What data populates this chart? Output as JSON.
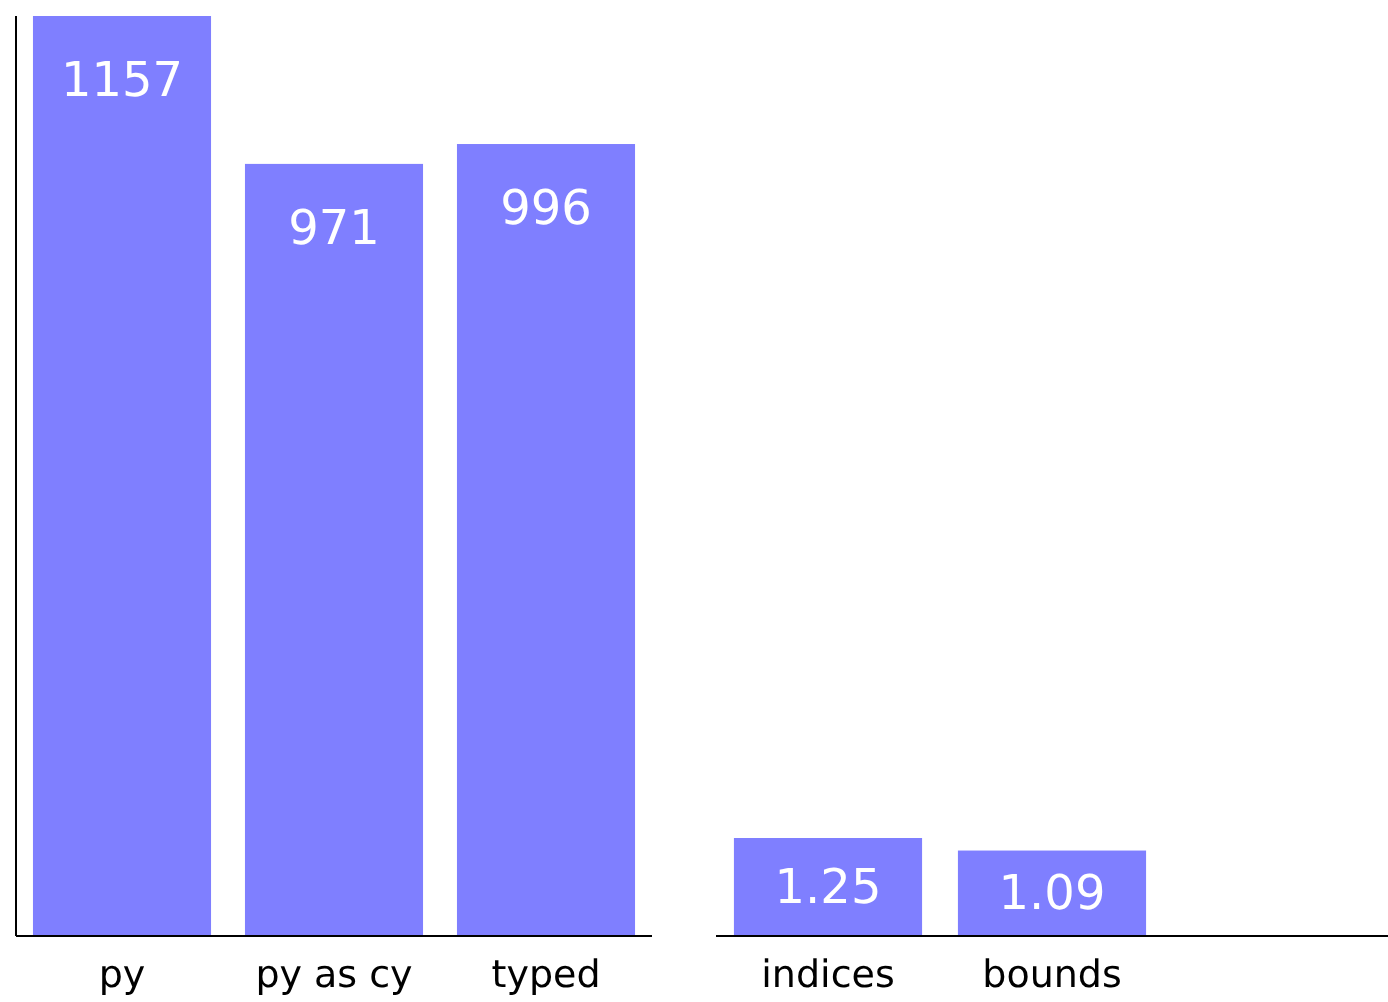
{
  "chart_data": [
    {
      "type": "bar",
      "categories": [
        "py",
        "py as cy",
        "typed"
      ],
      "values": [
        1157,
        971,
        996
      ],
      "color": "#7f7fff",
      "ylim": [
        0,
        1157
      ],
      "data_labels": true,
      "tick_labels": "x"
    },
    {
      "type": "bar",
      "categories": [
        "indices",
        "bounds",
        null
      ],
      "values": [
        1.25,
        1.09,
        null
      ],
      "color": "#7f7fff",
      "data_labels": true,
      "tick_labels": "x"
    }
  ]
}
